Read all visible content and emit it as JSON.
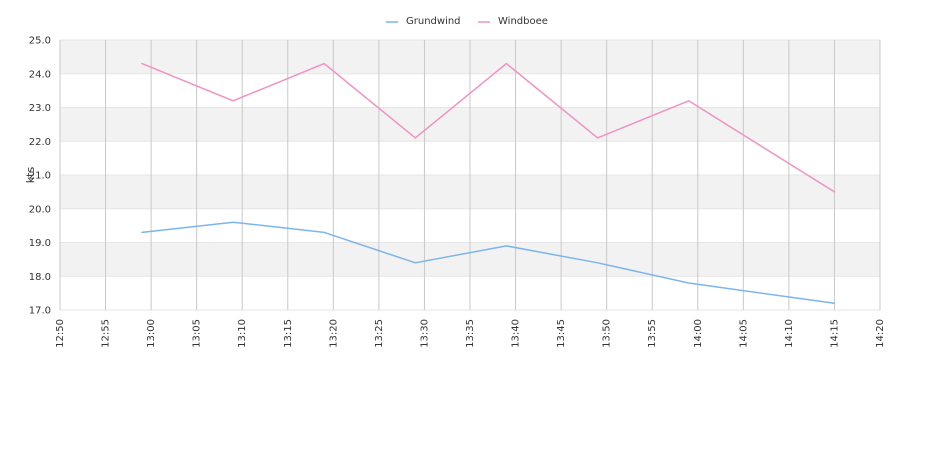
{
  "chart_data": {
    "type": "line",
    "title": "",
    "xlabel": "",
    "ylabel": "kts",
    "ylim": [
      17.0,
      25.0
    ],
    "yticks": [
      "17.0",
      "18.0",
      "19.0",
      "20.0",
      "21.0",
      "22.0",
      "23.0",
      "24.0",
      "25.0"
    ],
    "xlim": [
      "12:50",
      "14:20"
    ],
    "xticks": [
      "12:50",
      "12:55",
      "13:00",
      "13:05",
      "13:10",
      "13:15",
      "13:20",
      "13:25",
      "13:30",
      "13:35",
      "13:40",
      "13:45",
      "13:50",
      "13:55",
      "14:00",
      "14:05",
      "14:10",
      "14:15",
      "14:20"
    ],
    "grid": true,
    "legend_position": "top-center",
    "series": [
      {
        "name": "Grundwind",
        "color": "#7cb5ec",
        "x": [
          "12:59",
          "13:09",
          "13:19",
          "13:29",
          "13:39",
          "13:49",
          "13:59",
          "14:15"
        ],
        "values": [
          19.3,
          19.6,
          19.3,
          18.4,
          18.9,
          18.4,
          17.8,
          17.2
        ]
      },
      {
        "name": "Windboee",
        "color": "#f092c3",
        "x": [
          "12:59",
          "13:09",
          "13:19",
          "13:29",
          "13:39",
          "13:49",
          "13:59",
          "14:15"
        ],
        "values": [
          24.3,
          23.2,
          24.3,
          22.1,
          24.3,
          22.1,
          23.2,
          20.5
        ]
      }
    ]
  }
}
